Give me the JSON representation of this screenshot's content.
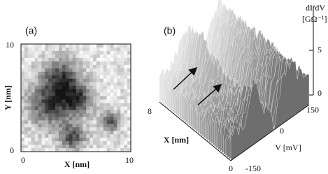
{
  "panel_a": {
    "label": "(a)",
    "y_axis_label": "Y [nm]",
    "x_axis_label": "X [nm]",
    "y_ticks": [
      "10",
      "0"
    ],
    "x_ticks": [
      "0",
      "10"
    ]
  },
  "panel_b": {
    "label": "(b)",
    "z_axis_label": [
      "dI/dV",
      "[GΩ⁻¹]"
    ],
    "z_ticks": [
      "5",
      "0"
    ],
    "x_tick": "8",
    "x_axis_label": "X [nm]",
    "x_origin": "0",
    "v_ticks": [
      "150",
      "0",
      "-150"
    ],
    "v_axis_label": "V [mV]"
  }
}
